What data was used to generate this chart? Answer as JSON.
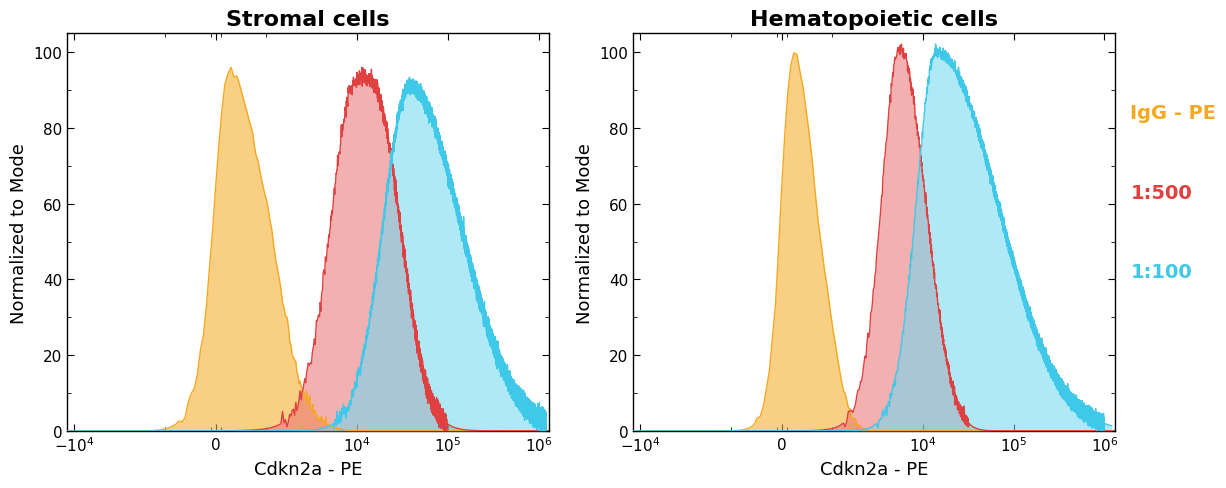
{
  "title_left": "Stromal cells",
  "title_right": "Hematopoietic cells",
  "xlabel": "Cdkn2a - PE",
  "ylabel": "Normalized to Mode",
  "ylim": [
    0,
    105
  ],
  "yticks": [
    0,
    20,
    40,
    60,
    80,
    100
  ],
  "colors": {
    "igg": "#F5A820",
    "d500": "#E04040",
    "d100": "#40C8E8"
  },
  "fill_colors": {
    "igg": "#F5A820",
    "d500": "#E87070",
    "d100": "#70D8F0"
  },
  "fill_alpha": 0.55,
  "legend_labels": [
    "IgG - PE",
    "1:500",
    "1:100"
  ],
  "legend_colors": [
    "#F5A820",
    "#E04040",
    "#40C8E8"
  ],
  "background": "#FFFFFF",
  "linthresh": 1000,
  "linscale": 0.5
}
